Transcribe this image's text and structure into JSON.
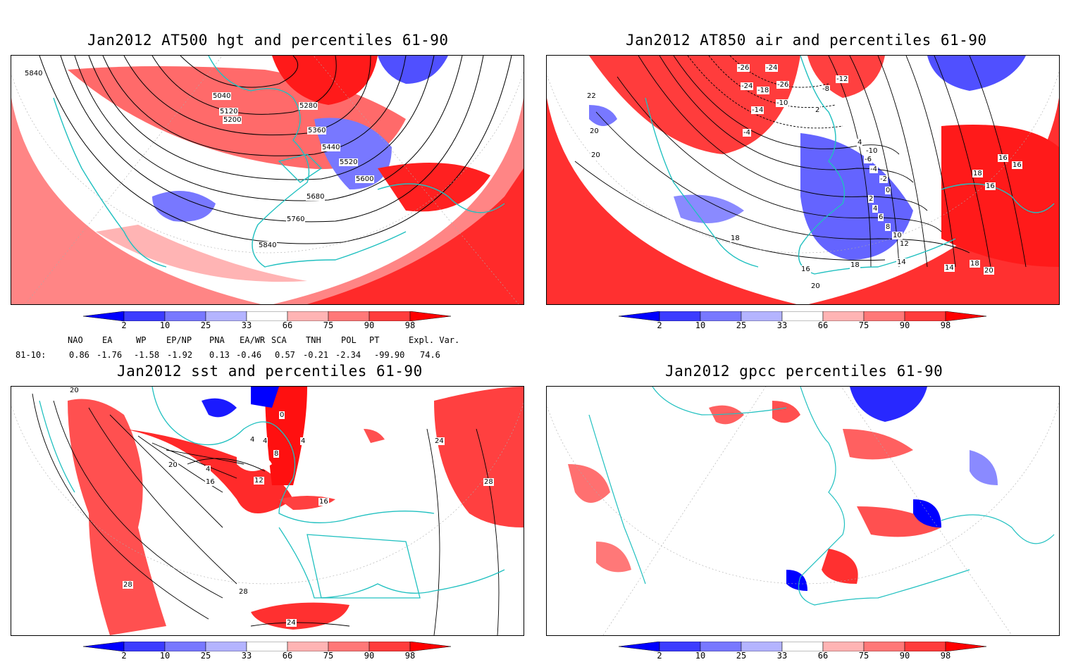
{
  "panels": [
    {
      "id": "p1",
      "title": "Jan2012 AT500 hgt and percentiles 61-90",
      "contour_labels": [
        "5840",
        "5040",
        "5120",
        "5200",
        "5280",
        "5360",
        "5440",
        "5520",
        "5600",
        "5680",
        "5760",
        "5840"
      ]
    },
    {
      "id": "p2",
      "title": "Jan2012 AT850 air and percentiles 61-90",
      "contour_labels": [
        "-26",
        "-24",
        "-24",
        "-18",
        "-26",
        "-12",
        "-8",
        "-14",
        "-10",
        "-4",
        "2",
        "4",
        "-10",
        "-6",
        "-4",
        "-2",
        "0",
        "2",
        "4",
        "6",
        "8",
        "10",
        "12",
        "14",
        "16",
        "18",
        "20",
        "22",
        "20",
        "20",
        "18",
        "18",
        "16",
        "16",
        "14",
        "18",
        "20",
        "16"
      ]
    },
    {
      "id": "p3",
      "title": "Jan2012 sst and percentiles 61-90",
      "contour_labels": [
        "20",
        "0",
        "4",
        "4",
        "8",
        "4",
        "20",
        "4",
        "16",
        "12",
        "16",
        "24",
        "28",
        "28",
        "24",
        "28"
      ]
    },
    {
      "id": "p4",
      "title": "Jan2012 gpcc percentiles 61-90",
      "contour_labels": []
    }
  ],
  "colorbar": {
    "ticks": [
      "2",
      "10",
      "25",
      "33",
      "66",
      "75",
      "90",
      "98"
    ],
    "colors": {
      "below2": "#0000ff",
      "c2_10": "#3c3cff",
      "c10_25": "#7878ff",
      "c25_33": "#b4b4ff",
      "c66_75": "#ffb4b4",
      "c75_90": "#ff7878",
      "c90_98": "#ff3c3c",
      "above98": "#ff0000"
    }
  },
  "teleconnections": {
    "headers": [
      "NAO",
      "EA",
      "WP",
      "EP/NP",
      "PNA",
      "EA/WR",
      "SCA",
      "TNH",
      "POL",
      "PT",
      "Expl. Var."
    ],
    "period": "81-10:",
    "values": [
      "0.86",
      "-1.76",
      "-1.58",
      "-1.92",
      "0.13",
      "-0.46",
      "0.57",
      "-0.21",
      "-2.34",
      "-99.90",
      "74.6"
    ]
  },
  "colors": {
    "coast": "#20c0c0",
    "contour": "#000000",
    "grid": "#999999"
  }
}
